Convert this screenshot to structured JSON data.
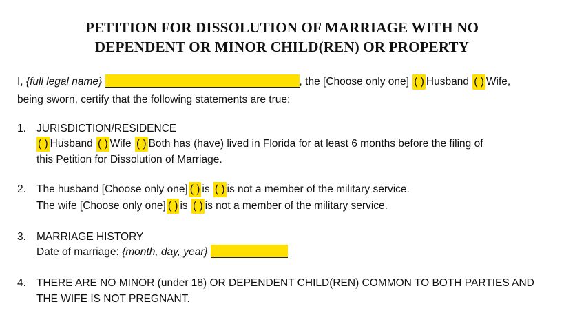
{
  "title_line1": "PETITION FOR DISSOLUTION OF MARRIAGE WITH NO",
  "title_line2": "DEPENDENT OR MINOR CHILD(REN) OR PROPERTY",
  "intro": {
    "prefix": "I, ",
    "name_hint": "{full legal name}",
    "after_blank": ", the [Choose only one]",
    "checkbox_mark": "(    )",
    "husband": "Husband",
    "wife": "Wife,",
    "line2": "being sworn, certify that the following statements are true:"
  },
  "sections": {
    "s1": {
      "num": "1.",
      "heading": "JURISDICTION/RESIDENCE",
      "opt_husband": "Husband",
      "opt_wife": "Wife",
      "opt_both": "Both has (have) lived in Florida for at least 6 months before the filing of",
      "line2": "this Petition for Dissolution of Marriage."
    },
    "s2": {
      "num": "2.",
      "husband_prefix": "The husband [Choose only one]",
      "wife_prefix": "The wife [Choose only one]",
      "is": "is",
      "is_not": "is not a member of the military service."
    },
    "s3": {
      "num": "3.",
      "heading": "MARRIAGE HISTORY",
      "date_label": "Date of marriage: ",
      "date_hint": "{month, day, year}"
    },
    "s4": {
      "num": "4.",
      "line1": "THERE ARE NO MINOR (under 18) OR DEPENDENT CHILD(REN) COMMON TO BOTH PARTIES AND",
      "line2": "THE WIFE IS NOT PREGNANT."
    }
  }
}
